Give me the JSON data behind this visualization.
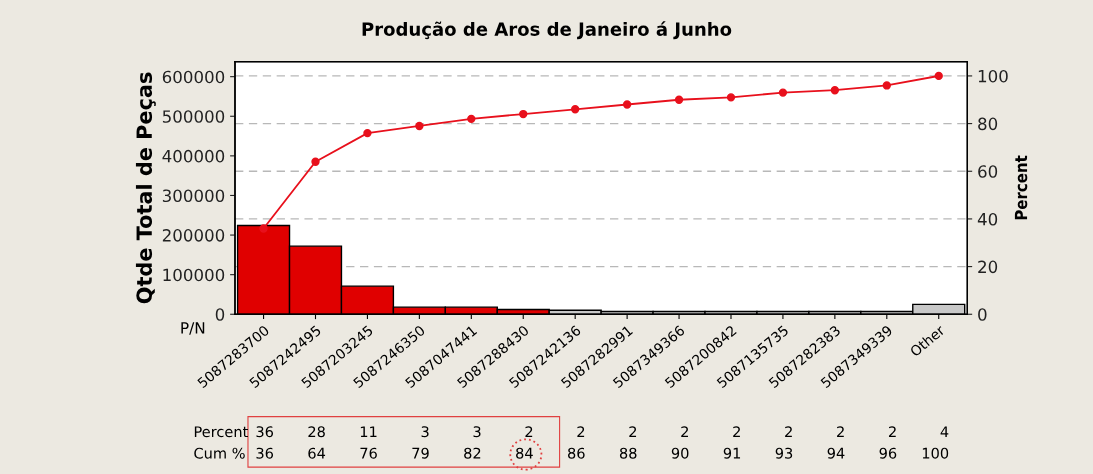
{
  "chart_data": {
    "type": "bar",
    "title": "Produção de Aros de Janeiro á Junho",
    "xlabel": "P/N",
    "ylabel": "Qtde Total de Peças",
    "y2label": "Percent",
    "categories": [
      "5087283700",
      "5087242495",
      "5087203245",
      "5087246350",
      "5087047441",
      "5087288430",
      "5087242136",
      "5087282991",
      "5087349366",
      "5087200842",
      "5087135735",
      "5087282383",
      "5087349339",
      "Other"
    ],
    "series": [
      {
        "colors": [
          "#e00000",
          "#e00000",
          "#e00000",
          "#e00000",
          "#e00000",
          "#e00000",
          "#c8c8c8",
          "#c8c8c8",
          "#c8c8c8",
          "#c8c8c8",
          "#c8c8c8",
          "#c8c8c8",
          "#c8c8c8",
          "#c8c8c8"
        ],
        "values": [
          224000,
          172000,
          71000,
          18000,
          18000,
          12000,
          10000,
          7000,
          7000,
          7000,
          7000,
          7000,
          7000,
          25000
        ]
      },
      {
        "type": "line",
        "axis": "y2",
        "color": "#e8101c",
        "marker": "circle",
        "values": [
          36,
          64,
          76,
          79,
          82,
          84,
          86,
          88,
          90,
          91,
          93,
          94,
          96,
          100
        ],
        "value_labels": [
          "36",
          "64",
          "76",
          "79",
          "82",
          "84",
          "86",
          "88",
          "90",
          "91",
          "93",
          "94",
          "96",
          "100"
        ]
      }
    ],
    "ylim": [
      0,
      638000
    ],
    "yticks": [
      0,
      100000,
      200000,
      300000,
      400000,
      500000,
      600000
    ],
    "y2lim": [
      0,
      106
    ],
    "y2ticks": [
      0,
      20,
      40,
      60,
      80,
      100
    ],
    "annotations": [
      "Percent",
      "Cum %",
      "36",
      "28",
      "11",
      "3",
      "3",
      "2",
      "2",
      "2",
      "2",
      "2",
      "2",
      "2",
      "2",
      "4"
    ],
    "grid": "y2"
  }
}
